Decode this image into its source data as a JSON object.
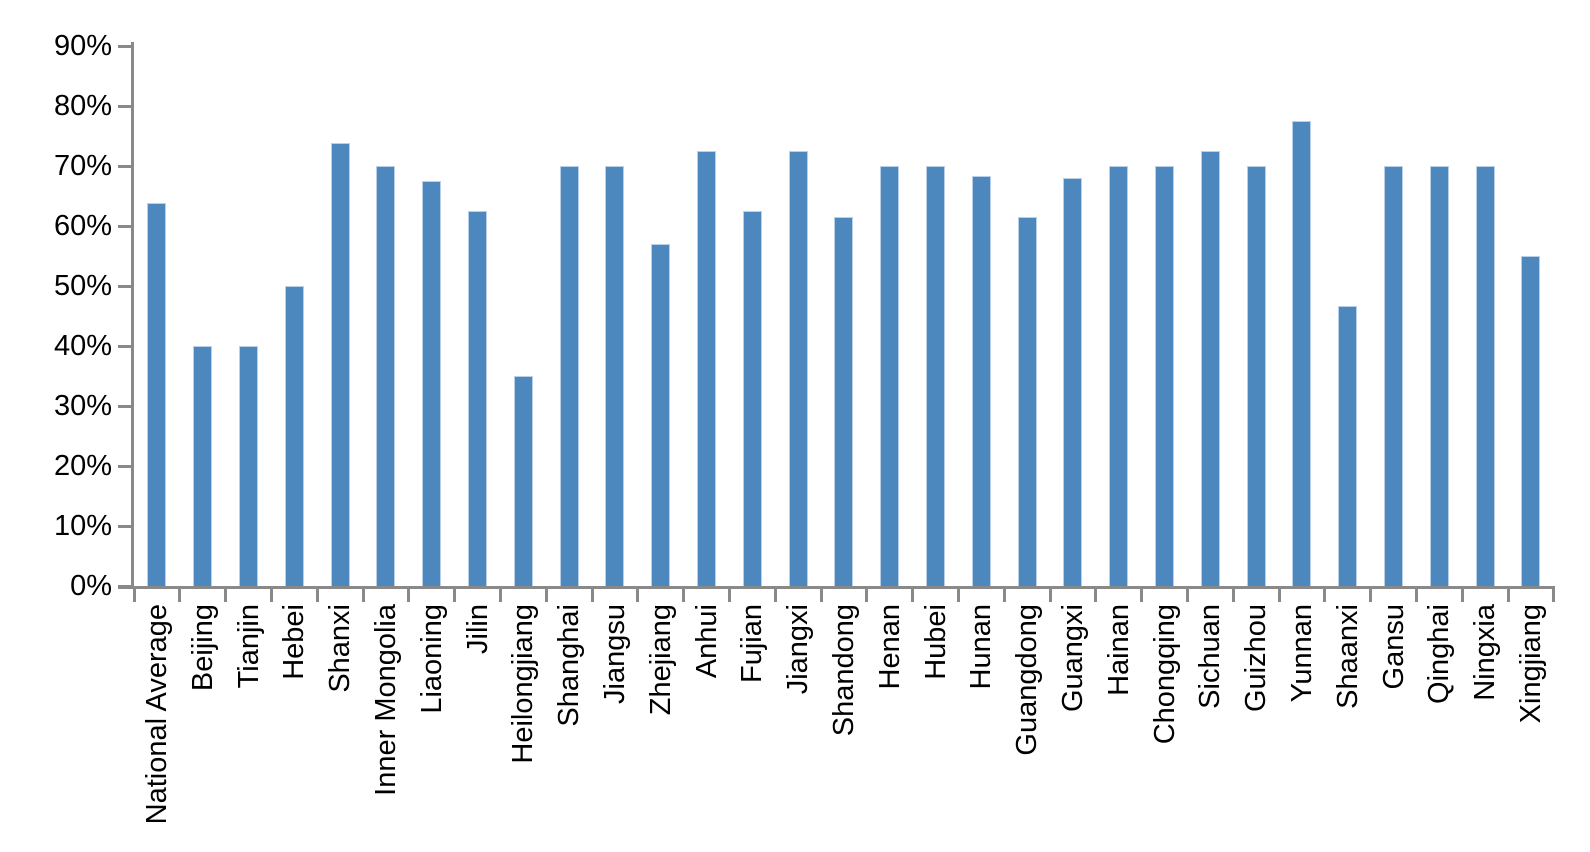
{
  "chart_data": {
    "type": "bar",
    "title": "",
    "xlabel": "",
    "ylabel": "",
    "categories": [
      "National Average",
      "Beijing",
      "Tianjin",
      "Hebei",
      "Shanxi",
      "Inner Mongolia",
      "Liaoning",
      "Jilin",
      "Heilongjiang",
      "Shanghai",
      "Jiangsu",
      "Zhejiang",
      "Anhui",
      "Fujian",
      "Jiangxi",
      "Shandong",
      "Henan",
      "Hubei",
      "Hunan",
      "Guangdong",
      "Guangxi",
      "Hainan",
      "Chongqing",
      "Sichuan",
      "Guizhou",
      "Yunnan",
      "Shaanxi",
      "Gansu",
      "Qinghai",
      "Ningxia",
      "Xingjiang"
    ],
    "values": [
      63.8,
      40,
      40,
      50,
      73.8,
      70,
      67.5,
      62.5,
      35,
      70,
      70,
      57,
      72.5,
      62.5,
      72.5,
      61.5,
      70,
      70,
      68.3,
      61.5,
      68,
      70,
      70,
      72.5,
      70,
      77.5,
      46.7,
      70,
      70,
      70,
      55
    ],
    "value_format": "percent",
    "ylim": [
      0,
      90
    ],
    "ytick_step": 10,
    "ytick_labels": [
      "0%",
      "10%",
      "20%",
      "30%",
      "40%",
      "50%",
      "60%",
      "70%",
      "80%",
      "90%"
    ],
    "grid": "off",
    "legend": "none",
    "colors": {
      "bar_fill": "#4C87BE",
      "bar_edge": "#B9D0E8",
      "axis": "#898989",
      "text": "#000000",
      "background": "#FFFFFF"
    }
  }
}
